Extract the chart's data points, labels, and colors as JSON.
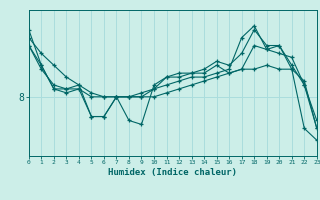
{
  "xlabel": "Humidex (Indice chaleur)",
  "background_color": "#cceee8",
  "line_color": "#006666",
  "grid_color": "#aadddd",
  "series": [
    [
      0,
      9.5,
      1,
      9.1,
      2,
      8.8,
      3,
      8.5,
      4,
      8.3,
      5,
      8.1,
      6,
      8.0,
      7,
      8.0,
      8,
      8.0,
      9,
      8.0,
      10,
      8.0,
      11,
      8.1,
      12,
      8.2,
      13,
      8.3,
      14,
      8.4,
      15,
      8.5,
      16,
      8.6,
      17,
      8.7,
      18,
      8.7,
      19,
      8.8,
      20,
      8.7,
      21,
      8.7,
      22,
      7.2,
      23,
      6.9
    ],
    [
      0,
      9.3,
      1,
      8.7,
      2,
      8.3,
      3,
      8.2,
      4,
      8.2,
      5,
      7.5,
      6,
      7.5,
      7,
      8.0,
      8,
      8.0,
      9,
      8.0,
      10,
      8.2,
      11,
      8.5,
      12,
      8.6,
      13,
      8.6,
      14,
      8.7,
      15,
      8.9,
      16,
      8.8,
      17,
      9.1,
      18,
      9.7,
      19,
      9.3,
      20,
      9.3,
      21,
      8.8,
      22,
      8.3,
      23,
      7.4
    ],
    [
      0,
      9.7,
      1,
      8.8,
      2,
      8.2,
      3,
      8.2,
      4,
      8.3,
      5,
      7.5,
      6,
      7.5,
      7,
      8.0,
      8,
      7.4,
      9,
      7.3,
      10,
      8.3,
      11,
      8.5,
      12,
      8.5,
      13,
      8.6,
      14,
      8.6,
      15,
      8.8,
      16,
      8.6,
      17,
      8.7,
      18,
      9.3,
      19,
      9.2,
      20,
      9.3,
      21,
      8.7,
      22,
      8.4,
      23,
      7.2
    ],
    [
      0,
      9.3,
      1,
      8.8,
      2,
      8.2,
      3,
      8.1,
      4,
      8.2,
      5,
      8.0,
      6,
      8.0,
      7,
      8.0,
      8,
      8.0,
      9,
      8.1,
      10,
      8.2,
      11,
      8.3,
      12,
      8.4,
      13,
      8.5,
      14,
      8.5,
      15,
      8.6,
      16,
      8.7,
      17,
      9.5,
      18,
      9.8,
      19,
      9.2,
      20,
      9.1,
      21,
      9.0,
      22,
      8.3,
      23,
      7.2
    ]
  ],
  "ytick_labels": [
    "8"
  ],
  "ytick_values": [
    8.0
  ],
  "xlim": [
    0,
    23
  ],
  "ylim": [
    6.5,
    10.2
  ]
}
